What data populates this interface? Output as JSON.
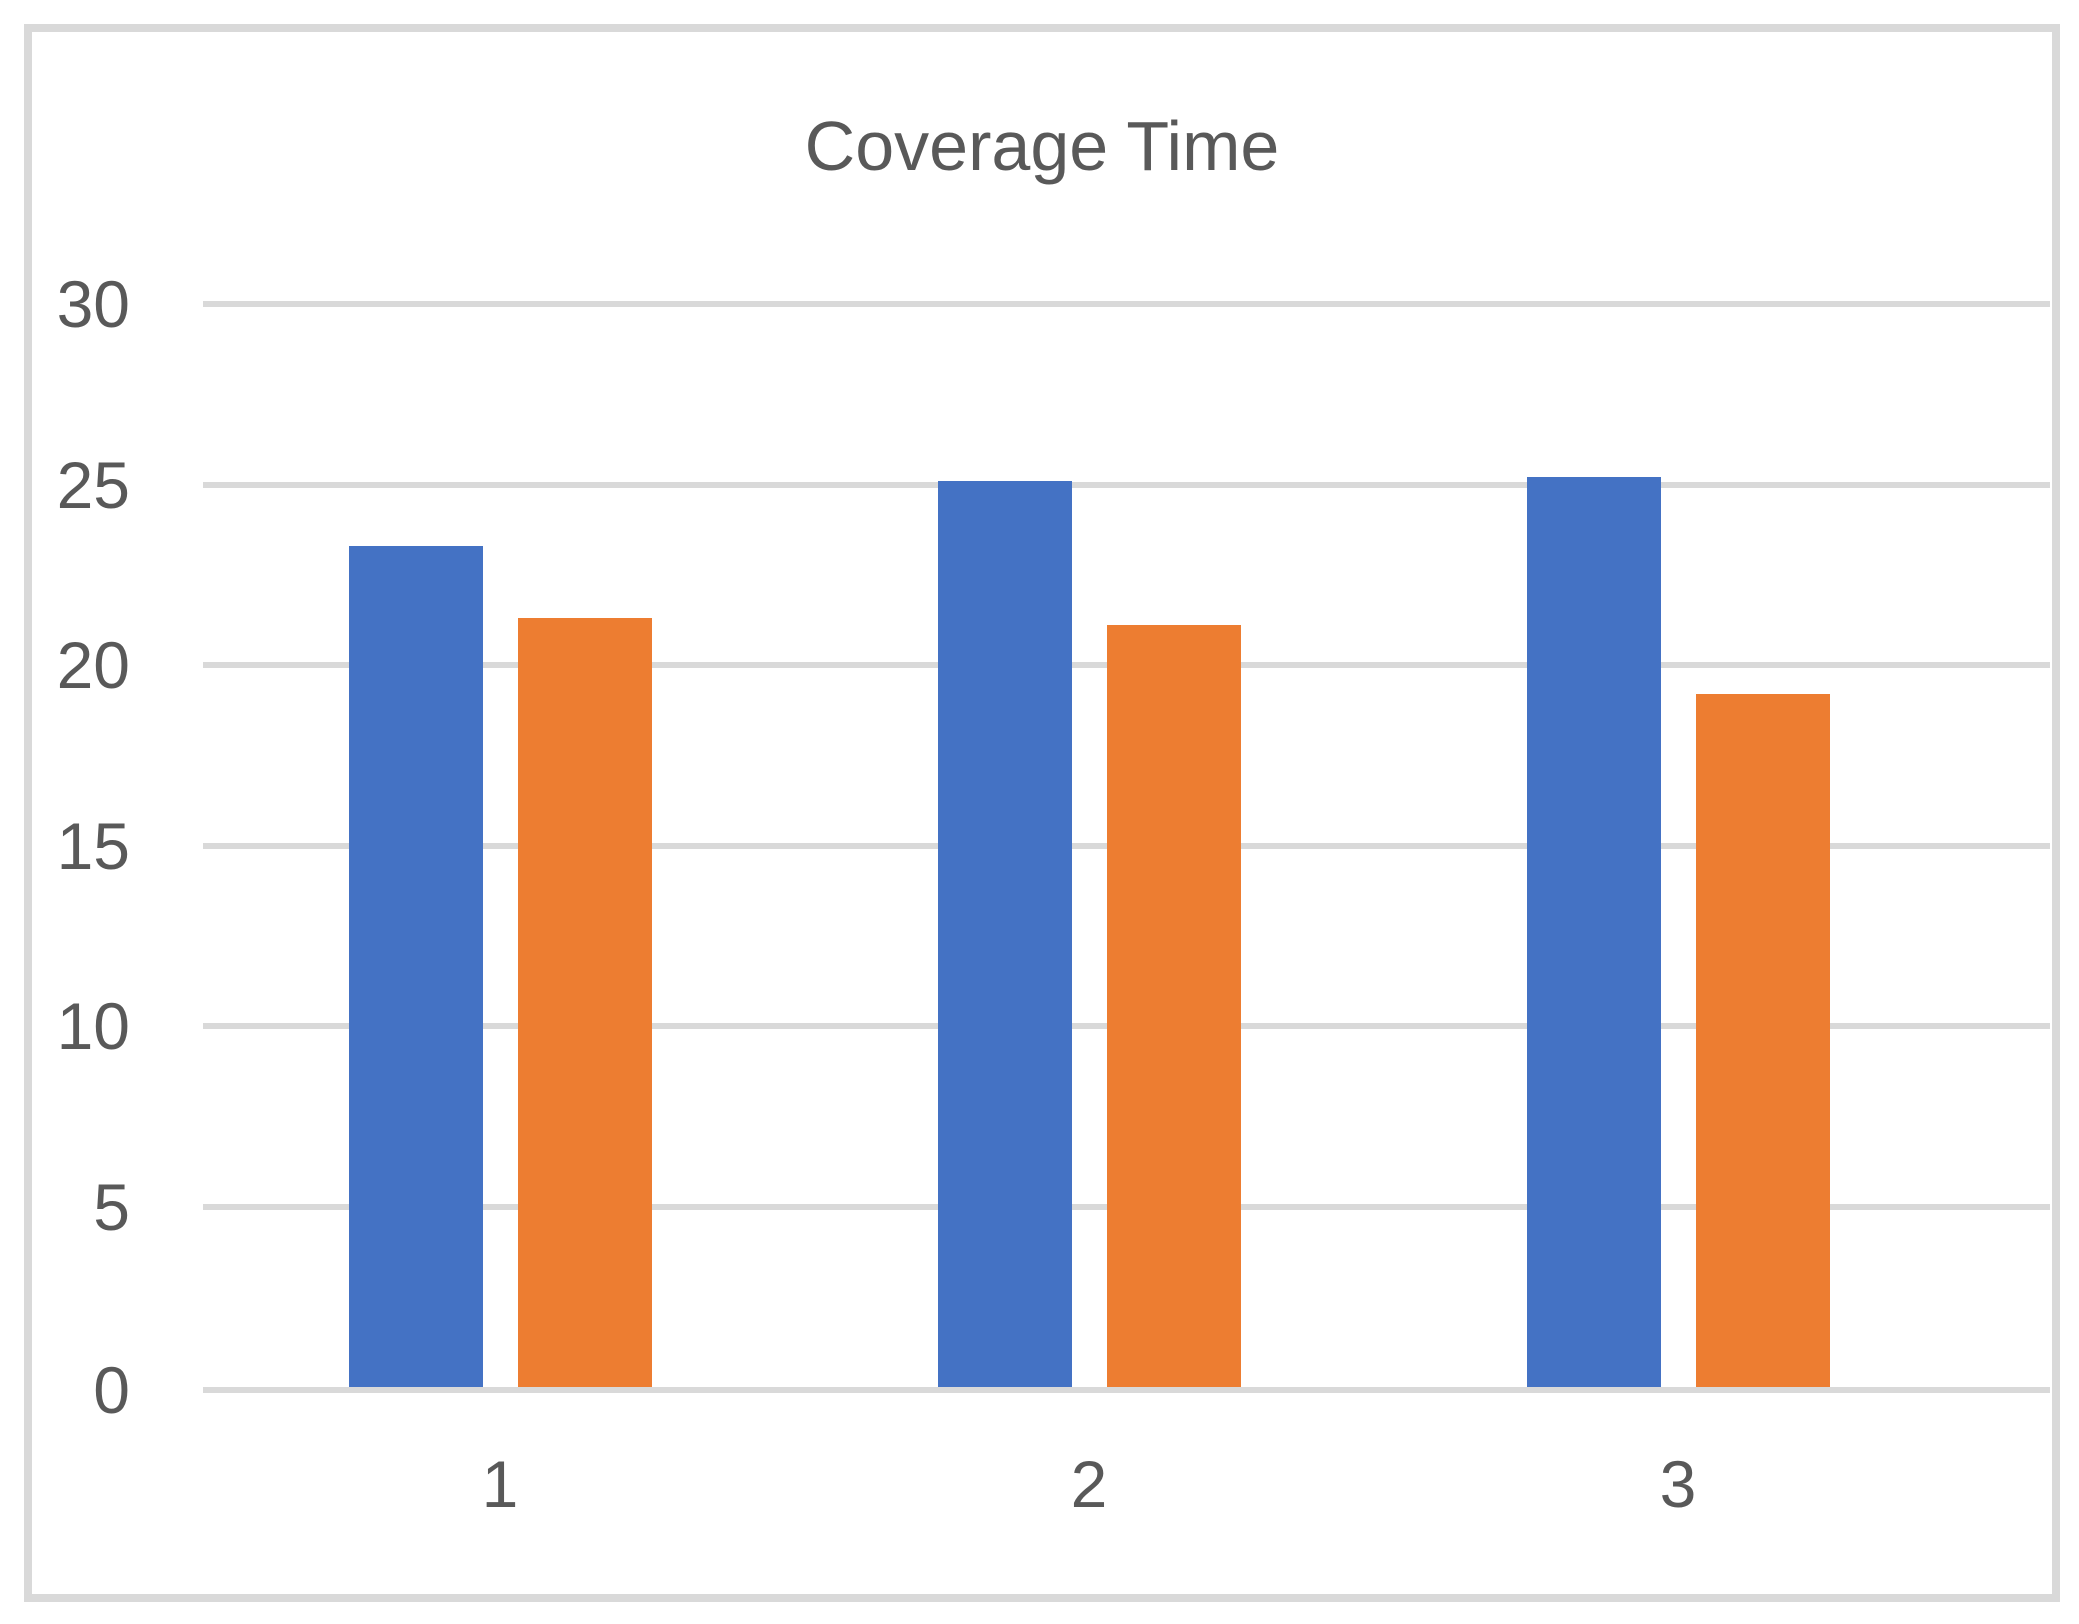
{
  "chart_data": {
    "type": "bar",
    "title": "Coverage Time",
    "categories": [
      "1",
      "2",
      "3"
    ],
    "series": [
      {
        "color": "#4472C4",
        "values": [
          23.3,
          25.1,
          25.2
        ]
      },
      {
        "color": "#ED7D31",
        "values": [
          21.3,
          21.1,
          19.2
        ]
      }
    ],
    "xlabel": "",
    "ylabel": "",
    "ylim": [
      0,
      30
    ],
    "yticks": [
      0,
      5,
      10,
      15,
      20,
      25,
      30
    ],
    "grid": true,
    "legend": "none"
  },
  "colors": {
    "text": "#595959",
    "gridline": "#D9D9D9",
    "frame_border": "#D9D9D9",
    "background": "#FFFFFF"
  }
}
